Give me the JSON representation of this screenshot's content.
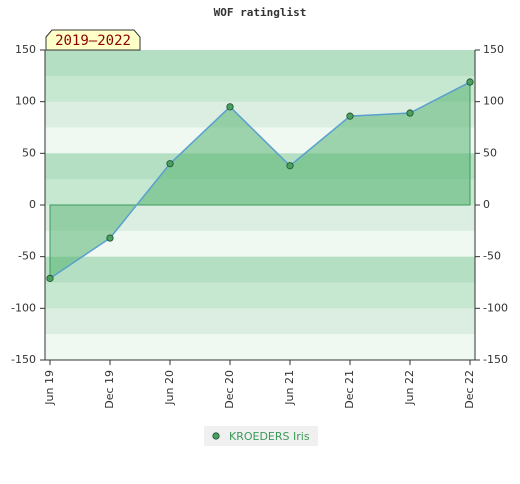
{
  "chart_data": {
    "type": "area",
    "title": "WOF ratinglist",
    "annotation": "2019–2022",
    "categories": [
      "Jun 19",
      "Dec 19",
      "Jun 20",
      "Dec 20",
      "Jun 21",
      "Dec 21",
      "Jun 22",
      "Dec 22"
    ],
    "series": [
      {
        "name": "KROEDERS Iris",
        "color": "#4aa060",
        "values": [
          -71,
          -32,
          40,
          95,
          38,
          86,
          89,
          119
        ]
      }
    ],
    "ylim": [
      -150,
      150
    ],
    "yticks": [
      -150,
      -100,
      -50,
      0,
      50,
      100,
      150
    ]
  }
}
